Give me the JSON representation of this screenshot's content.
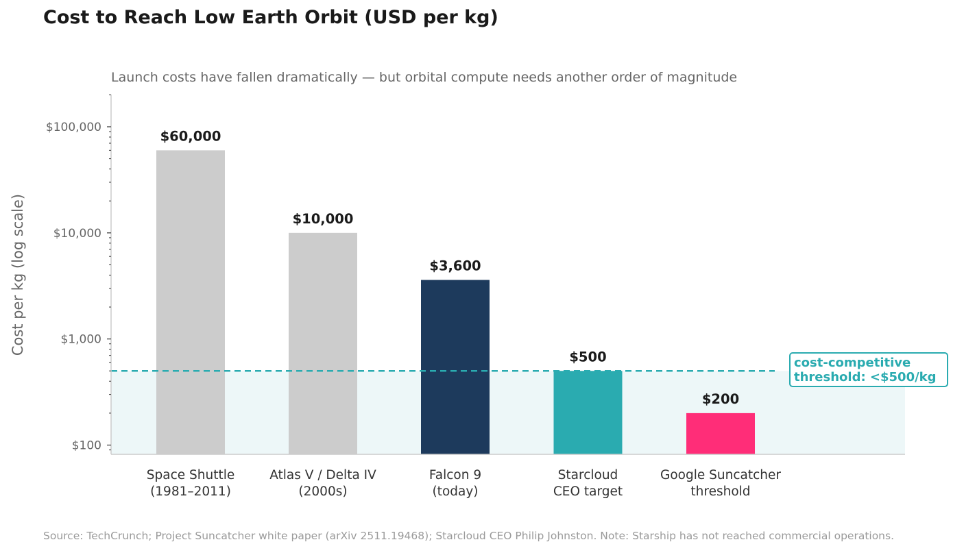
{
  "title": "Cost to Reach Low Earth Orbit (USD per kg)",
  "subtitle": "Launch costs have fallen dramatically — but orbital compute needs another order of magnitude",
  "source": "Source: TechCrunch; Project Suncatcher white paper (arXiv 2511.19468); Starcloud CEO Philip Johnston. Note: Starship has not reached commercial operations.",
  "threshold_annotation": {
    "line1": "cost-competitive",
    "line2": "threshold: <$500/kg"
  },
  "chart_data": {
    "type": "bar",
    "title": "Cost to Reach Low Earth Orbit (USD per kg)",
    "subtitle": "Launch costs have fallen dramatically — but orbital compute needs another order of magnitude",
    "ylabel": "Cost per kg (log scale)",
    "yscale": "log",
    "ylim": [
      80,
      200000
    ],
    "yticks": [
      100,
      1000,
      10000,
      100000
    ],
    "ytick_labels": [
      "$100",
      "$1,000",
      "$10,000",
      "$100,000"
    ],
    "categories": [
      [
        "Space Shuttle",
        "(1981–2011)"
      ],
      [
        "Atlas V / Delta IV",
        "(2000s)"
      ],
      [
        "Falcon 9",
        "(today)"
      ],
      [
        "Starcloud",
        "CEO target"
      ],
      [
        "Google Suncatcher",
        "threshold"
      ]
    ],
    "values": [
      60000,
      10000,
      3600,
      500,
      200
    ],
    "value_labels": [
      "$60,000",
      "$10,000",
      "$3,600",
      "$500",
      "$200"
    ],
    "bar_colors": [
      "#cccccc",
      "#cccccc",
      "#1d3a5c",
      "#2aabb0",
      "#ff2d78"
    ],
    "threshold": {
      "value": 500,
      "color": "#2aabb0",
      "style": "dashed",
      "shaded_below": true
    },
    "grid": false
  }
}
